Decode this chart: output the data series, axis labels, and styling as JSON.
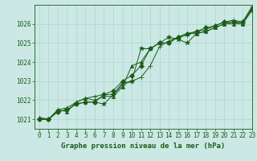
{
  "title": "Graphe pression niveau de la mer (hPa)",
  "bg_color": "#cce8e4",
  "grid_color": "#aad8cc",
  "line_color": "#1a5c1a",
  "xlim": [
    -0.5,
    23
  ],
  "ylim": [
    1020.5,
    1027.0
  ],
  "yticks": [
    1021,
    1022,
    1023,
    1024,
    1025,
    1026
  ],
  "ytick_label_top": 1027,
  "xticks": [
    0,
    1,
    2,
    3,
    4,
    5,
    6,
    7,
    8,
    9,
    10,
    11,
    12,
    13,
    14,
    15,
    16,
    17,
    18,
    19,
    20,
    21,
    22,
    23
  ],
  "series": [
    [
      1021.0,
      1021.0,
      1021.4,
      1021.5,
      1021.8,
      1021.9,
      1021.9,
      1021.8,
      1022.3,
      1022.9,
      1023.0,
      1024.7,
      1024.7,
      1025.0,
      1025.3,
      1025.2,
      1025.0,
      1025.5,
      1025.6,
      1025.8,
      1026.0,
      1026.1,
      1026.0,
      1026.7
    ],
    [
      1021.1,
      1021.0,
      1021.5,
      1021.4,
      1021.9,
      1022.1,
      1022.0,
      1022.2,
      1022.2,
      1022.7,
      1023.8,
      1024.0,
      1024.7,
      1025.0,
      1025.0,
      1025.3,
      1025.5,
      1025.5,
      1025.6,
      1025.8,
      1026.0,
      1026.0,
      1026.0,
      1026.8
    ],
    [
      1021.0,
      1021.0,
      1021.4,
      1021.5,
      1021.8,
      1021.9,
      1021.9,
      1022.3,
      1022.5,
      1023.0,
      1023.3,
      1023.8,
      1024.7,
      1025.0,
      1025.0,
      1025.3,
      1025.5,
      1025.6,
      1025.8,
      1025.9,
      1026.1,
      1026.1,
      1026.1,
      1026.8
    ],
    [
      1021.0,
      1021.0,
      1021.5,
      1021.6,
      1021.9,
      1022.1,
      1022.2,
      1022.3,
      1022.3,
      1022.8,
      1023.0,
      1023.2,
      1023.8,
      1024.8,
      1025.1,
      1025.3,
      1025.4,
      1025.6,
      1025.7,
      1025.9,
      1026.1,
      1026.2,
      1026.1,
      1026.9
    ]
  ],
  "markers": [
    "*",
    "^",
    "D",
    "+"
  ],
  "marker_sizes": [
    4,
    3,
    3,
    5
  ],
  "linewidth": 0.7,
  "tick_labelsize": 5.5,
  "xlabel_fontsize": 6.5
}
